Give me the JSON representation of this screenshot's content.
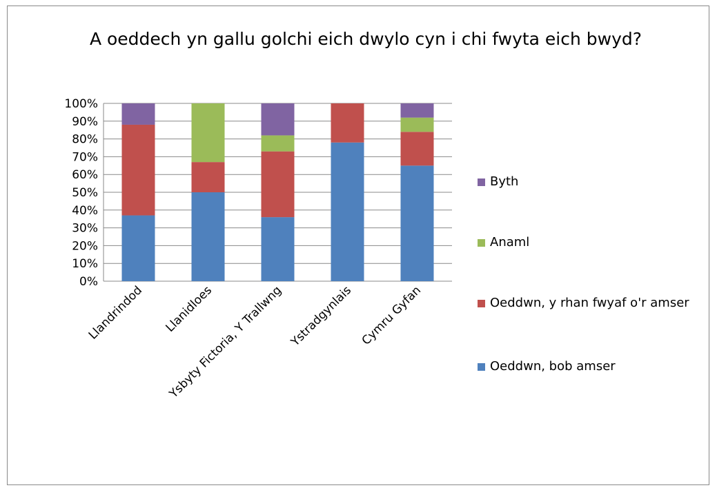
{
  "chart_data": {
    "type": "bar",
    "stacked": true,
    "title": "A oeddech yn gallu golchi eich dwylo cyn i chi fwyta eich bwyd?",
    "categories": [
      "Llandrindod",
      "Llanidloes",
      "Ysbyty Fictoria, Y Trallwng",
      "Ystradgynlais",
      "Cymru Gyfan"
    ],
    "series": [
      {
        "name": "Oeddwn, bob amser",
        "color": "#4f81bd",
        "values": [
          37,
          50,
          36,
          78,
          65
        ]
      },
      {
        "name": "Oeddwn, y rhan fwyaf o'r amser",
        "color": "#c0504d",
        "values": [
          51,
          17,
          37,
          22,
          19
        ]
      },
      {
        "name": "Anaml",
        "color": "#9bbb59",
        "values": [
          0,
          33,
          9,
          0,
          8
        ]
      },
      {
        "name": "Byth",
        "color": "#8064a2",
        "values": [
          12,
          0,
          18,
          0,
          8
        ]
      }
    ],
    "ylim": [
      0,
      100
    ],
    "yticks": [
      {
        "value": 0,
        "label": "0%"
      },
      {
        "value": 10,
        "label": "10%"
      },
      {
        "value": 20,
        "label": "20%"
      },
      {
        "value": 30,
        "label": "30%"
      },
      {
        "value": 40,
        "label": "40%"
      },
      {
        "value": 50,
        "label": "50%"
      },
      {
        "value": 60,
        "label": "60%"
      },
      {
        "value": 70,
        "label": "70%"
      },
      {
        "value": 80,
        "label": "80%"
      },
      {
        "value": 90,
        "label": "90%"
      },
      {
        "value": 100,
        "label": "100%"
      }
    ],
    "grid": true,
    "legend": "right"
  }
}
